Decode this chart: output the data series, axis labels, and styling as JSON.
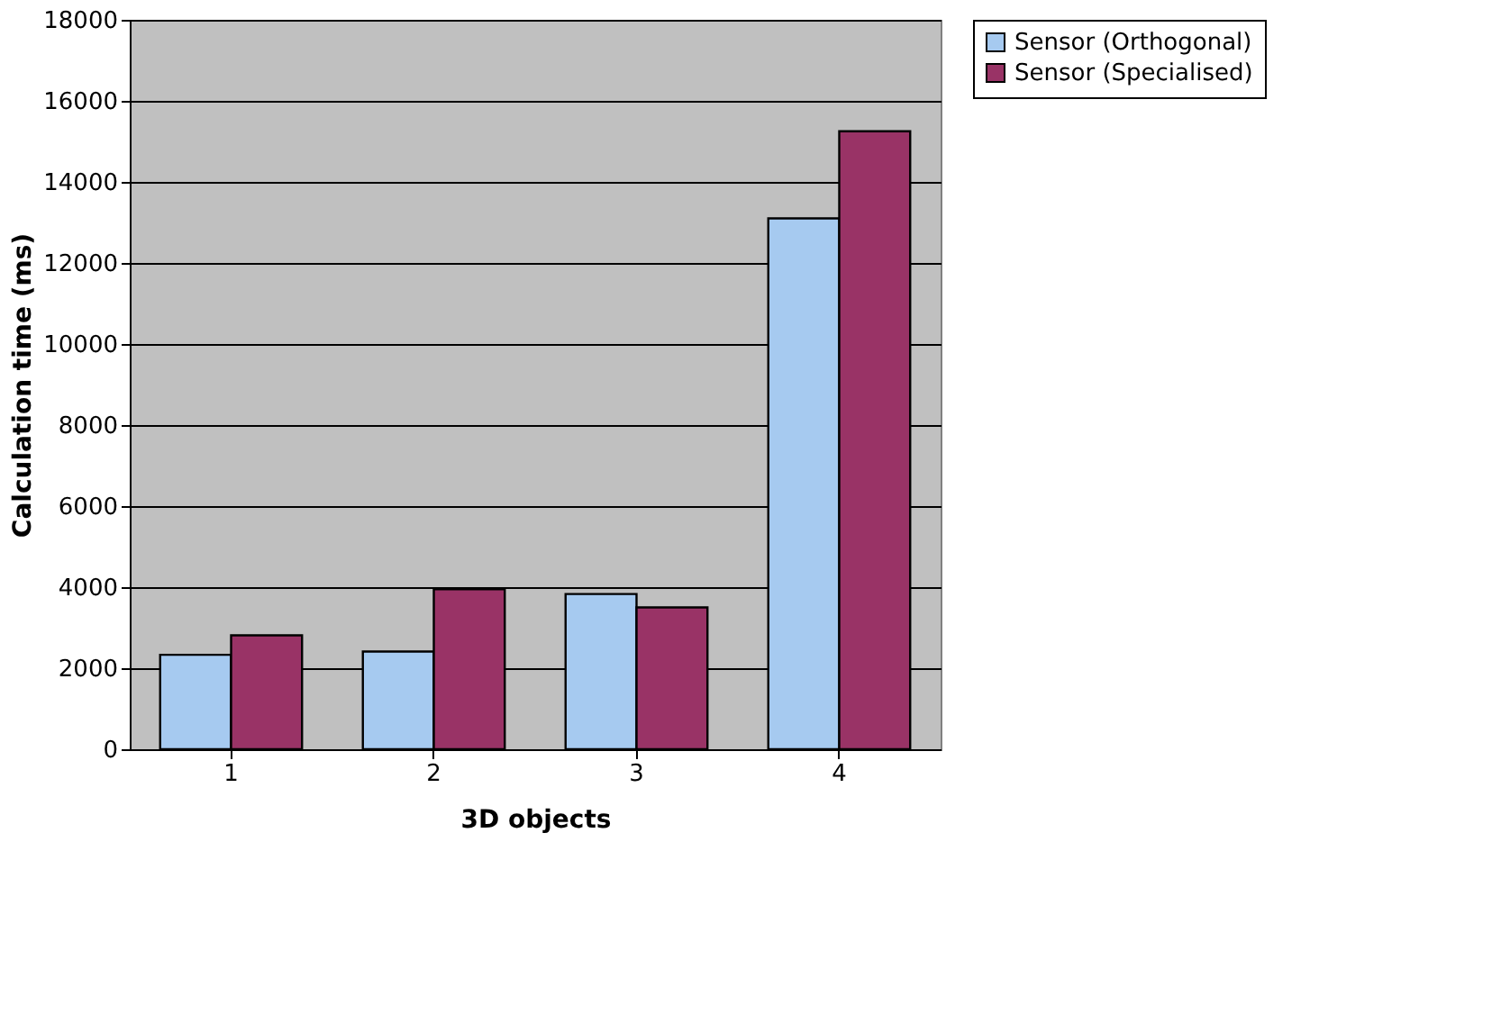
{
  "chart_data": {
    "type": "bar",
    "xlabel": "3D objects",
    "ylabel": "Calculation time (ms)",
    "categories": [
      "1",
      "2",
      "3",
      "4"
    ],
    "series": [
      {
        "name": "Sensor (Orthogonal)",
        "color": "#a6caf0",
        "values": [
          2330,
          2410,
          3830,
          13100
        ]
      },
      {
        "name": "Sensor (Specialised)",
        "color": "#993366",
        "values": [
          2810,
          3950,
          3500,
          15250
        ]
      }
    ],
    "ylim": [
      0,
      18000
    ],
    "yticks": [
      0,
      2000,
      4000,
      6000,
      8000,
      10000,
      12000,
      14000,
      16000,
      18000
    ],
    "grid": "y",
    "legend": "right"
  }
}
